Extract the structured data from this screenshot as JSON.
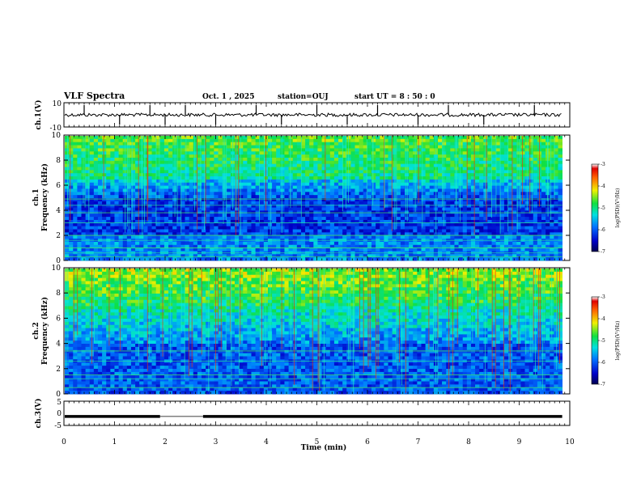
{
  "header": {
    "title": "VLF Spectra",
    "date": "Oct. 1 , 2025",
    "station": "station=OUJ",
    "start": "start  UT  =   8 : 50 : 0"
  },
  "chart_data": [
    {
      "id": "ch1-waveform",
      "type": "line",
      "ylabel": "ch.1(V)",
      "ylim": [
        -10,
        10
      ],
      "yticks": [
        "10",
        "-10"
      ],
      "baseline": 0,
      "spikes_min": [
        0.4,
        1.1,
        1.7,
        2.0,
        2.4,
        3.0,
        3.8,
        4.3,
        5.0,
        5.6,
        6.2,
        7.0,
        7.6,
        8.3,
        9.3
      ]
    },
    {
      "id": "ch1-spectrogram",
      "type": "heatmap",
      "ylabel": "ch.1\nFrequency  (kHz)",
      "ylim": [
        0,
        10
      ],
      "yticks": [
        "0",
        "2",
        "4",
        "6",
        "8",
        "10"
      ],
      "xlim_min": [
        0,
        9.85
      ],
      "colorbar": {
        "label": "log(PSD)(V²/Hz)",
        "range": [
          -7,
          -3
        ],
        "ticks": [
          "-3",
          "-4",
          "-5",
          "-6",
          "-7"
        ]
      },
      "bright_lines_khz": [
        0.3,
        0.6,
        1.0,
        1.6,
        2.0,
        3.0,
        3.8,
        4.4,
        4.9
      ]
    },
    {
      "id": "ch2-spectrogram",
      "type": "heatmap",
      "ylabel": "ch.2\nFrequency  (kHz)",
      "ylim": [
        0,
        10
      ],
      "yticks": [
        "0",
        "2",
        "4",
        "6",
        "8",
        "10"
      ],
      "xlim_min": [
        0,
        9.85
      ],
      "colorbar": {
        "label": "log(PSD)(V²/Hz)",
        "range": [
          -7,
          -3
        ],
        "ticks": [
          "-3",
          "-4",
          "-5",
          "-6",
          "-7"
        ]
      },
      "bright_lines_khz": [
        0.5,
        1.2,
        1.5,
        2.6,
        3.4
      ]
    },
    {
      "id": "ch3-signal",
      "type": "line",
      "ylabel": "ch.3(V)",
      "ylim": [
        -5,
        5
      ],
      "yticks": [
        "5",
        "0",
        "-5"
      ],
      "level": -1.3,
      "gap_min": [
        1.9,
        2.75
      ]
    }
  ],
  "xaxis": {
    "label": "Time  (min)",
    "xlim": [
      0,
      10
    ],
    "ticks": [
      "0",
      "1",
      "2",
      "3",
      "4",
      "5",
      "6",
      "7",
      "8",
      "9",
      "10"
    ]
  }
}
